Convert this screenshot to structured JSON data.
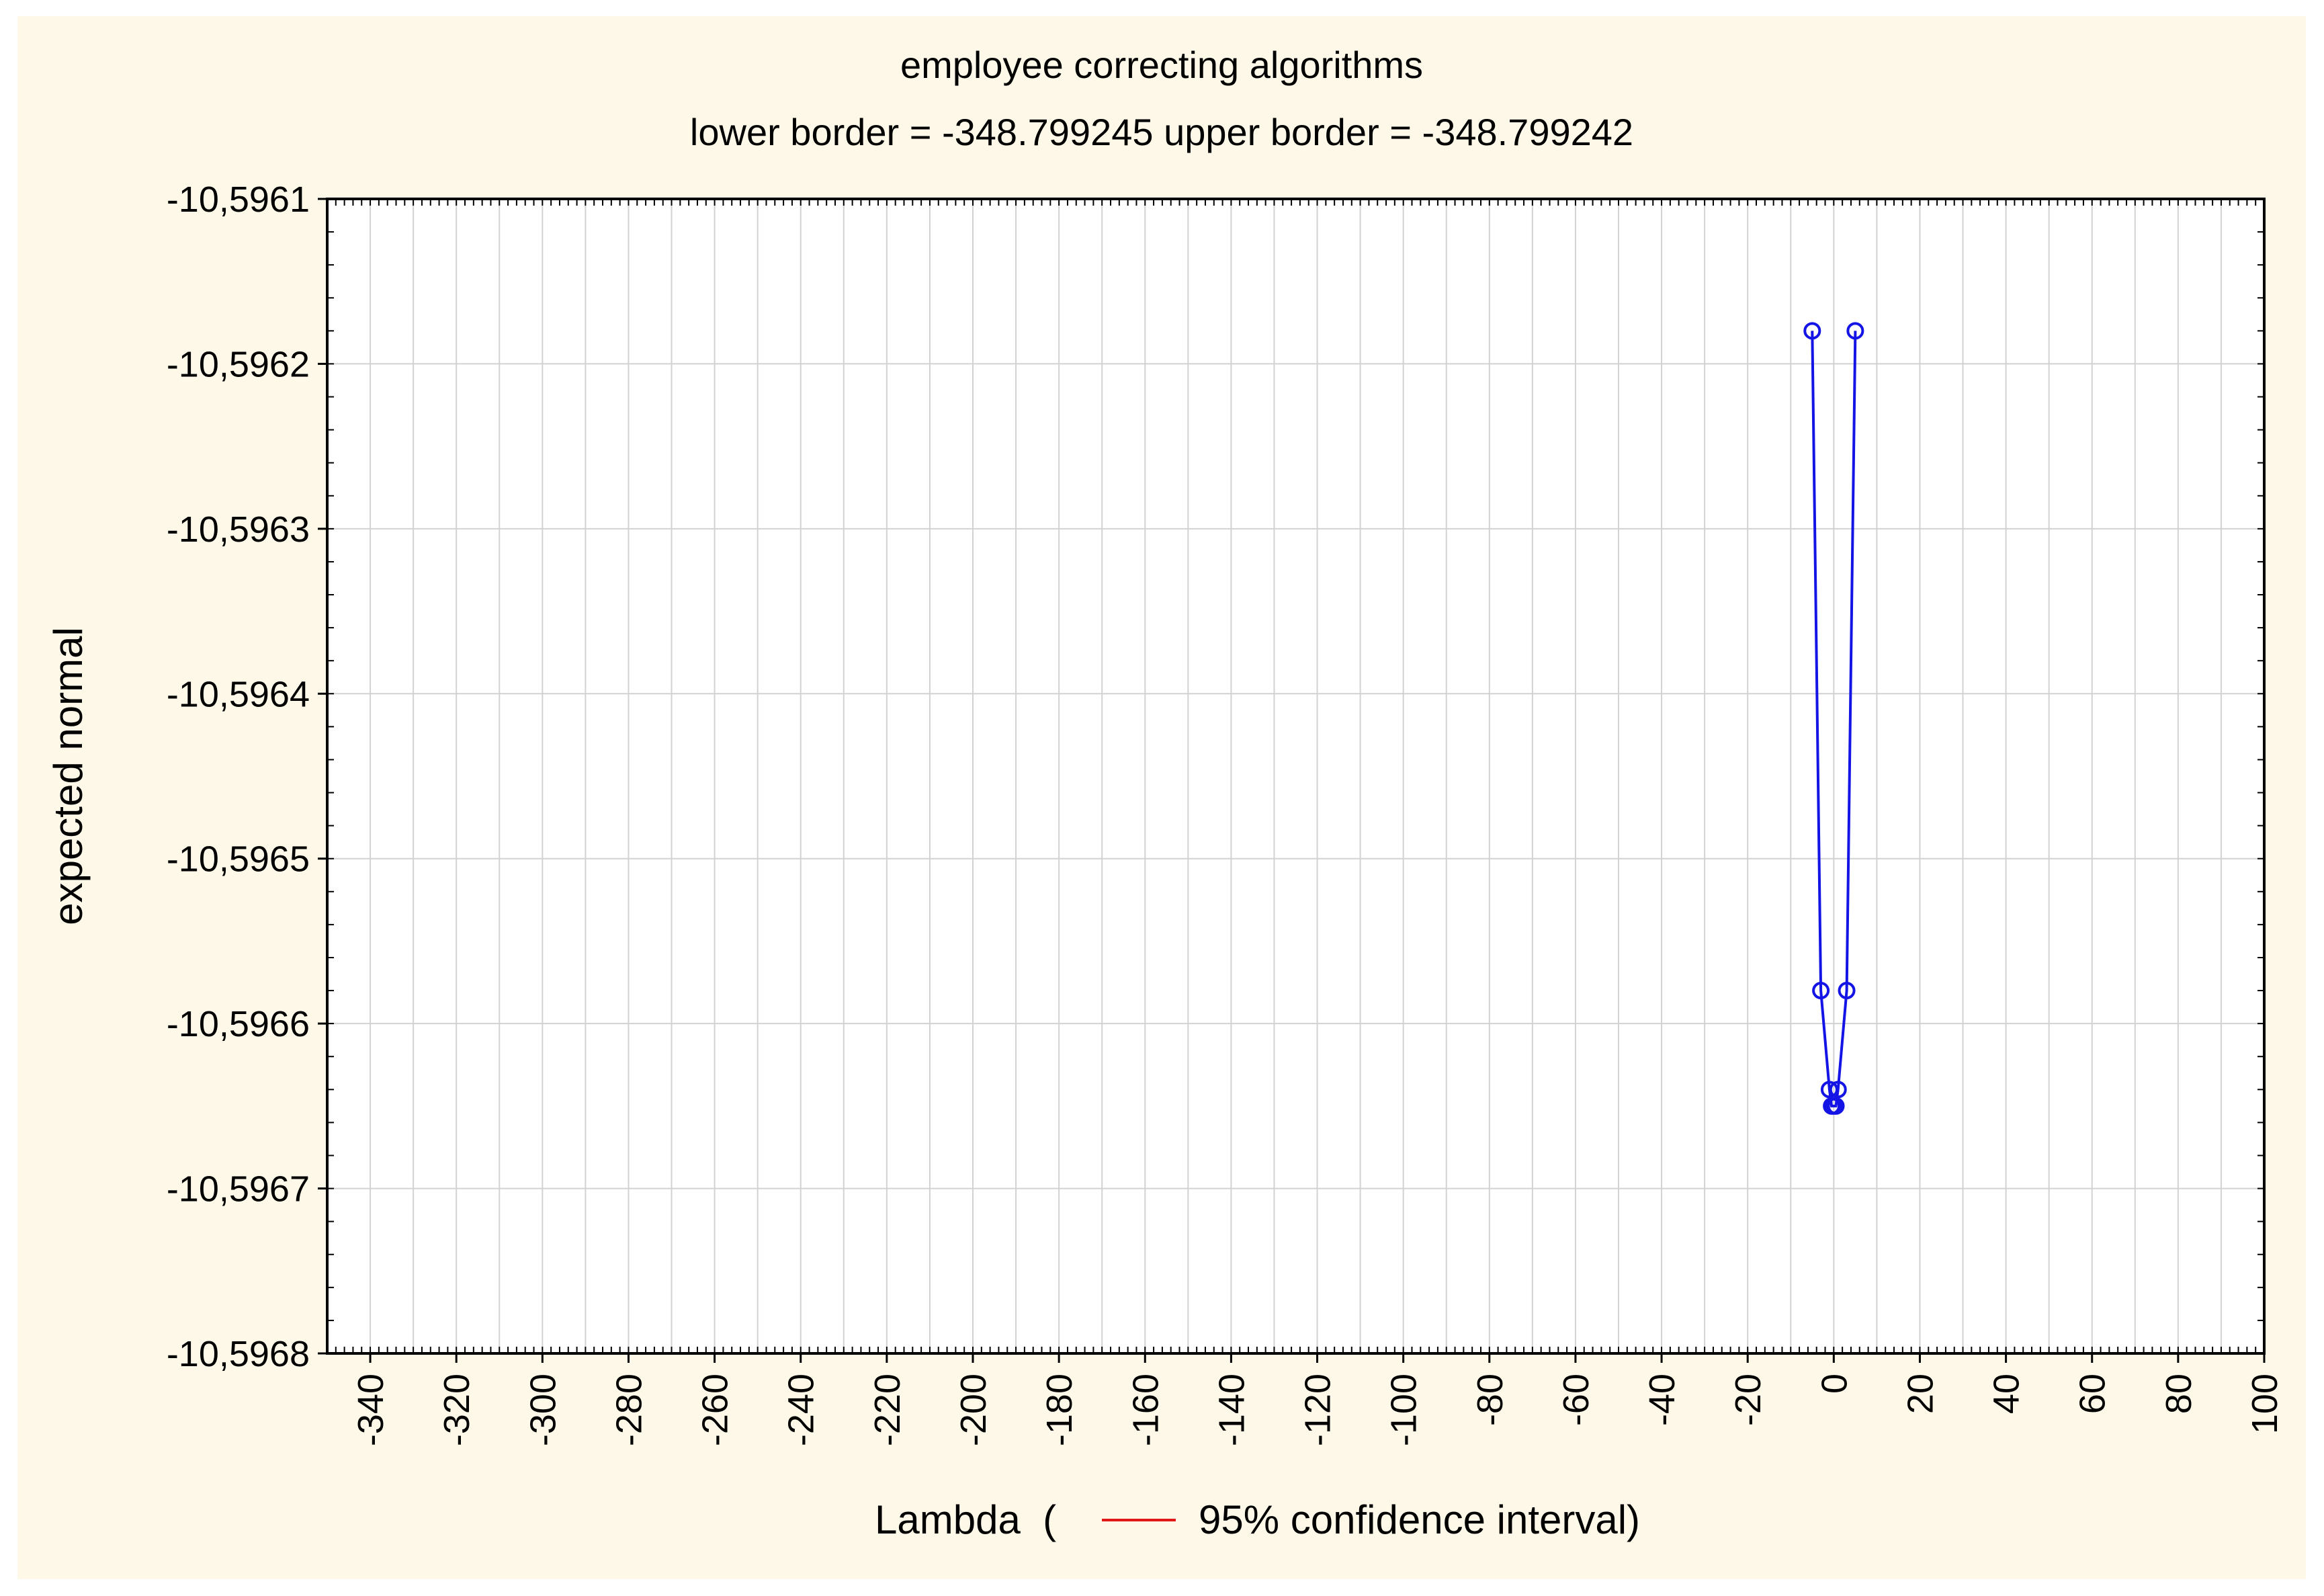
{
  "chart_data": {
    "type": "line",
    "title": "employee correcting algorithms",
    "subtitle": "lower border = -348.799245 upper border = -348.799242",
    "xlabel": {
      "prefix": "Lambda  (",
      "legend_text": "95% confidence interval)",
      "legend_line_color": "#e01818"
    },
    "ylabel": "expected normal",
    "xlim": [
      -350,
      100
    ],
    "ylim": [
      -10.5968,
      -10.5961
    ],
    "x_ticks": [
      -340,
      -320,
      -300,
      -280,
      -260,
      -240,
      -220,
      -200,
      -180,
      -160,
      -140,
      -120,
      -100,
      -80,
      -60,
      -40,
      -20,
      0,
      20,
      40,
      60,
      80,
      100
    ],
    "y_ticks": [
      {
        "value": -10.5961,
        "label": "-10,5961"
      },
      {
        "value": -10.5962,
        "label": "-10,5962"
      },
      {
        "value": -10.5963,
        "label": "-10,5963"
      },
      {
        "value": -10.5964,
        "label": "-10,5964"
      },
      {
        "value": -10.5965,
        "label": "-10,5965"
      },
      {
        "value": -10.5966,
        "label": "-10,5966"
      },
      {
        "value": -10.5967,
        "label": "-10,5967"
      },
      {
        "value": -10.5968,
        "label": "-10,5968"
      }
    ],
    "grid": true,
    "series_color": "#1414e6",
    "series": [
      {
        "x": [
          -5,
          -3,
          -1,
          -0.5,
          0,
          0.5,
          1,
          3,
          5
        ],
        "y": [
          -10.59618,
          -10.59658,
          -10.59664,
          -10.59665,
          -10.59665,
          -10.59665,
          -10.59664,
          -10.59658,
          -10.59618
        ]
      }
    ]
  }
}
